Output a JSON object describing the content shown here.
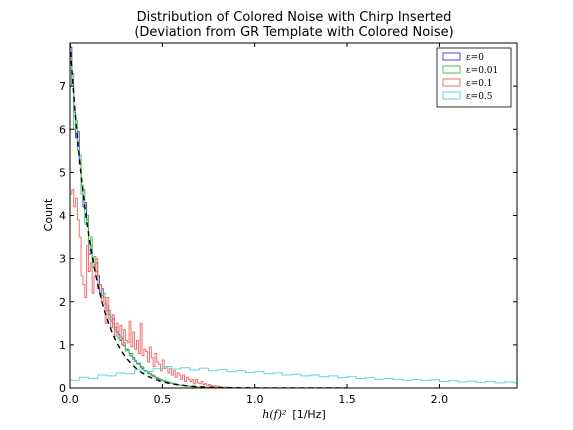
{
  "chart_data": {
    "type": "histogram",
    "title_lines": [
      "Distribution of Colored Noise with Chirp Inserted",
      "(Deviation from GR Template with Colored Noise)"
    ],
    "xlabel_math": "h(f)²",
    "xlabel_unit": "[1/Hz]",
    "ylabel": "Count",
    "xlim": [
      0,
      2.42
    ],
    "ylim": [
      0,
      8
    ],
    "xticks": [
      {
        "value": 0.0,
        "label": "0.0"
      },
      {
        "value": 0.5,
        "label": "0.5"
      },
      {
        "value": 1.0,
        "label": "1.0"
      },
      {
        "value": 1.5,
        "label": "1.5"
      },
      {
        "value": 2.0,
        "label": "2.0"
      }
    ],
    "yticks": [
      {
        "value": 0,
        "label": "0"
      },
      {
        "value": 1,
        "label": "1"
      },
      {
        "value": 2,
        "label": "2"
      },
      {
        "value": 3,
        "label": "3"
      },
      {
        "value": 4,
        "label": "4"
      },
      {
        "value": 5,
        "label": "5"
      },
      {
        "value": 6,
        "label": "6"
      },
      {
        "value": 7,
        "label": "7"
      }
    ],
    "legend_position": "top-right",
    "theory_curve": {
      "style": "black dashed",
      "amplitude": 8.0,
      "decay_scale": 0.125
    },
    "series": [
      {
        "name": "ε=0",
        "color": "#4b4bdb",
        "bin_width": 0.01,
        "counts": [
          7.9,
          7.0,
          6.4,
          5.8,
          5.95,
          5.2,
          4.7,
          4.2,
          4.3,
          3.9,
          3.1,
          3.3,
          3.0,
          2.85,
          2.9,
          2.6,
          2.2,
          2.3,
          2.1,
          1.95,
          1.8,
          1.7,
          1.55,
          1.6,
          1.4,
          1.3,
          1.25,
          1.1,
          1.15,
          0.98,
          0.9,
          0.88,
          0.8,
          0.74,
          0.7,
          0.62,
          0.58,
          0.55,
          0.5,
          0.45,
          0.41,
          0.38,
          0.35,
          0.33,
          0.3,
          0.27,
          0.25,
          0.22,
          0.21,
          0.19,
          0.17,
          0.16,
          0.15,
          0.13,
          0.12,
          0.11,
          0.1,
          0.09,
          0.08,
          0.07,
          0.065,
          0.06,
          0.05,
          0.045,
          0.04,
          0.035,
          0.03,
          0.03,
          0.025,
          0.02,
          0.02,
          0.015,
          0.015,
          0.01,
          0.01,
          0.01,
          0.008,
          0.006,
          0.005,
          0.004
        ]
      },
      {
        "name": "ε=0.01",
        "color": "#4fbf4f",
        "bin_width": 0.01,
        "counts": [
          7.6,
          7.3,
          6.0,
          6.2,
          5.5,
          5.4,
          4.5,
          4.6,
          3.8,
          4.0,
          3.2,
          3.5,
          2.8,
          3.05,
          2.7,
          2.4,
          2.4,
          2.15,
          2.2,
          1.85,
          1.9,
          1.6,
          1.65,
          1.5,
          1.35,
          1.4,
          1.15,
          1.2,
          1.0,
          1.05,
          0.86,
          0.9,
          0.76,
          0.8,
          0.66,
          0.64,
          0.56,
          0.58,
          0.47,
          0.48,
          0.4,
          0.4,
          0.33,
          0.34,
          0.28,
          0.29,
          0.23,
          0.24,
          0.19,
          0.2,
          0.16,
          0.17,
          0.13,
          0.14,
          0.11,
          0.11,
          0.09,
          0.09,
          0.075,
          0.07,
          0.06,
          0.06,
          0.05,
          0.045,
          0.04,
          0.035,
          0.03,
          0.028,
          0.022,
          0.02,
          0.018,
          0.015,
          0.012,
          0.01,
          0.009,
          0.008,
          0.006,
          0.005,
          0.004,
          0.003
        ]
      },
      {
        "name": "ε=0.1",
        "color": "#ef7070",
        "bin_width": 0.01,
        "counts": [
          4.5,
          4.6,
          4.2,
          4.4,
          3.9,
          3.5,
          2.6,
          2.4,
          2.1,
          3.3,
          2.7,
          2.9,
          2.2,
          2.6,
          3.0,
          2.3,
          2.4,
          2.0,
          2.1,
          1.5,
          2.1,
          1.8,
          1.4,
          1.7,
          1.2,
          1.5,
          1.3,
          1.45,
          1.0,
          1.35,
          1.1,
          1.05,
          1.55,
          0.95,
          1.3,
          0.9,
          1.1,
          0.8,
          1.5,
          0.75,
          0.9,
          0.85,
          0.6,
          0.95,
          0.7,
          0.5,
          0.8,
          0.6,
          0.55,
          0.4,
          0.65,
          0.45,
          0.5,
          0.35,
          0.45,
          0.3,
          0.4,
          0.25,
          0.35,
          0.3,
          0.2,
          0.3,
          0.15,
          0.25,
          0.2,
          0.15,
          0.2,
          0.1,
          0.2,
          0.12,
          0.1,
          0.15,
          0.08,
          0.1,
          0.05,
          0.08,
          0.06,
          0.03,
          0.05,
          0.02,
          0.04,
          0.02,
          0.02,
          0.01,
          0.02,
          0.01,
          0.01,
          0.005,
          0.01,
          0.0
        ]
      },
      {
        "name": "ε=0.5",
        "color": "#66d4d4",
        "bin_width": 0.05,
        "counts": [
          0.18,
          0.25,
          0.22,
          0.3,
          0.28,
          0.35,
          0.33,
          0.42,
          0.38,
          0.45,
          0.5,
          0.44,
          0.47,
          0.42,
          0.46,
          0.4,
          0.43,
          0.38,
          0.4,
          0.36,
          0.38,
          0.33,
          0.35,
          0.3,
          0.32,
          0.28,
          0.3,
          0.26,
          0.28,
          0.24,
          0.26,
          0.22,
          0.24,
          0.2,
          0.22,
          0.2,
          0.18,
          0.2,
          0.17,
          0.19,
          0.15,
          0.17,
          0.14,
          0.16,
          0.13,
          0.15,
          0.12,
          0.14,
          0.12
        ]
      }
    ]
  }
}
